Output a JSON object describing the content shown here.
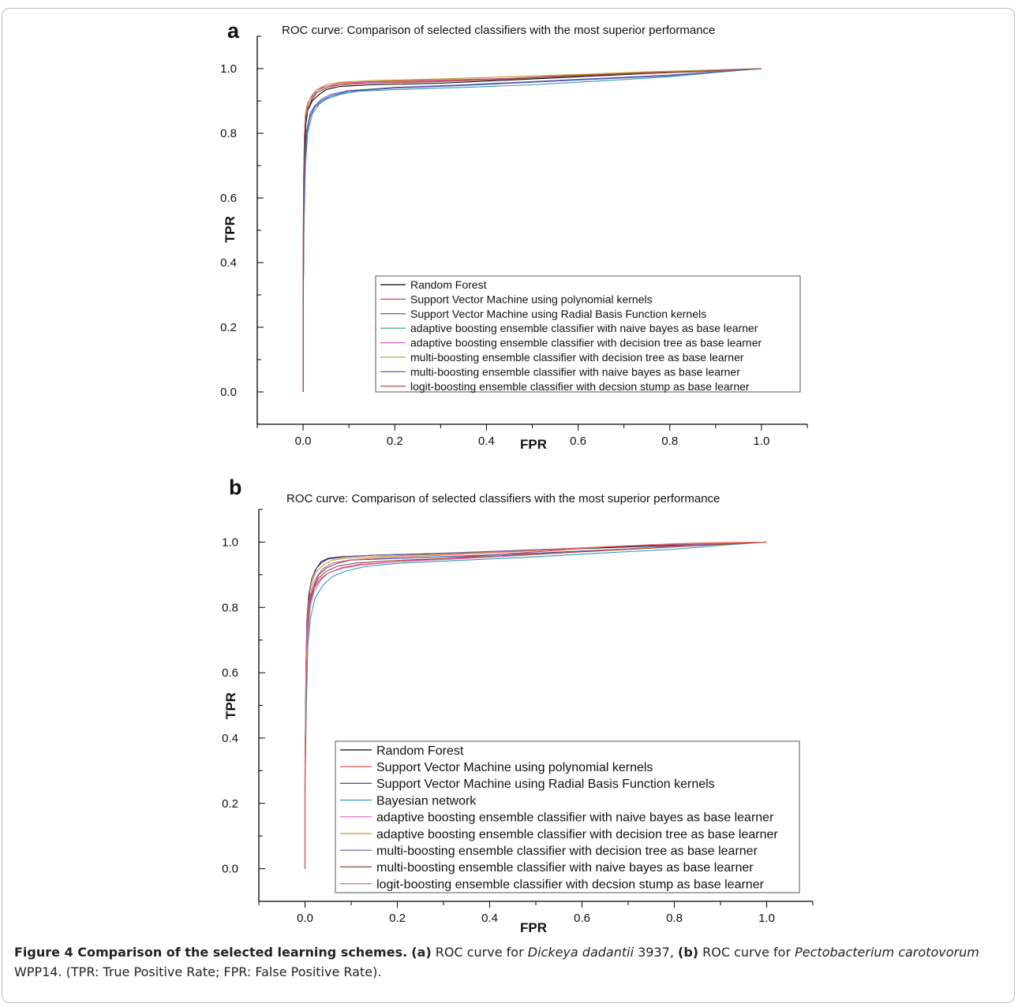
{
  "chart_data": [
    {
      "panel_label": "a",
      "type": "line",
      "title": "ROC curve: Comparison of selected classifiers with the most superior performance",
      "xlabel": "FPR",
      "ylabel": "TPR",
      "xlim": [
        -0.1,
        1.1
      ],
      "ylim": [
        -0.1,
        1.1
      ],
      "xticks": [
        "0.0",
        "0.2",
        "0.4",
        "0.6",
        "0.8",
        "1.0"
      ],
      "yticks": [
        "0.0",
        "0.2",
        "0.4",
        "0.6",
        "0.8",
        "1.0"
      ],
      "legend_position": "bottom-right",
      "grid": false,
      "series": [
        {
          "name": "Random Forest",
          "color": "#000000",
          "x": [
            0,
            0,
            0.002,
            0.004,
            0.006,
            0.01,
            0.02,
            0.035,
            0.05,
            0.08,
            0.15,
            0.3,
            0.45,
            0.6,
            0.75,
            0.9,
            1.0
          ],
          "y": [
            0,
            0.3,
            0.6,
            0.76,
            0.83,
            0.87,
            0.9,
            0.92,
            0.935,
            0.945,
            0.95,
            0.955,
            0.965,
            0.975,
            0.985,
            0.993,
            1.0
          ]
        },
        {
          "name": "Support Vector Machine using polynomial kernels",
          "color": "#e0403a",
          "x": [
            0,
            0,
            0.001,
            0.003,
            0.005,
            0.01,
            0.02,
            0.03,
            0.05,
            0.08,
            0.15,
            0.3,
            0.45,
            0.6,
            0.75,
            0.9,
            1.0
          ],
          "y": [
            0,
            0.35,
            0.66,
            0.8,
            0.86,
            0.895,
            0.915,
            0.935,
            0.945,
            0.955,
            0.96,
            0.965,
            0.97,
            0.98,
            0.988,
            0.995,
            1.0
          ]
        },
        {
          "name": "Support Vector Machine using Radial Basis Function kernels",
          "color": "#3a4fb0",
          "x": [
            0,
            0,
            0.002,
            0.005,
            0.008,
            0.015,
            0.025,
            0.04,
            0.06,
            0.1,
            0.2,
            0.35,
            0.5,
            0.65,
            0.8,
            0.9,
            1.0
          ],
          "y": [
            0,
            0.25,
            0.55,
            0.72,
            0.8,
            0.85,
            0.88,
            0.9,
            0.915,
            0.93,
            0.94,
            0.948,
            0.958,
            0.968,
            0.978,
            0.99,
            1.0
          ]
        },
        {
          "name": "adaptive boosting ensemble classifier with naive bayes as base learner",
          "color": "#2f9bb0",
          "x": [
            0,
            0,
            0.002,
            0.005,
            0.01,
            0.02,
            0.035,
            0.05,
            0.08,
            0.12,
            0.2,
            0.35,
            0.5,
            0.65,
            0.8,
            0.9,
            1.0
          ],
          "y": [
            0,
            0.22,
            0.52,
            0.7,
            0.8,
            0.86,
            0.89,
            0.905,
            0.92,
            0.93,
            0.935,
            0.942,
            0.95,
            0.962,
            0.975,
            0.988,
            1.0
          ]
        },
        {
          "name": "adaptive boosting ensemble classifier with decision tree as base learner",
          "color": "#d65fc6",
          "x": [
            0,
            0,
            0.001,
            0.003,
            0.006,
            0.012,
            0.02,
            0.03,
            0.05,
            0.09,
            0.15,
            0.3,
            0.45,
            0.6,
            0.75,
            0.9,
            1.0
          ],
          "y": [
            0,
            0.3,
            0.62,
            0.78,
            0.85,
            0.885,
            0.91,
            0.93,
            0.945,
            0.952,
            0.958,
            0.962,
            0.97,
            0.978,
            0.986,
            0.993,
            1.0
          ]
        },
        {
          "name": "multi-boosting ensemble classifier with decision tree as base learner",
          "color": "#b5a23b",
          "x": [
            0,
            0,
            0.001,
            0.003,
            0.005,
            0.01,
            0.018,
            0.03,
            0.05,
            0.08,
            0.15,
            0.3,
            0.45,
            0.6,
            0.75,
            0.9,
            1.0
          ],
          "y": [
            0,
            0.32,
            0.64,
            0.79,
            0.86,
            0.89,
            0.915,
            0.935,
            0.95,
            0.958,
            0.963,
            0.968,
            0.975,
            0.982,
            0.99,
            0.996,
            1.0
          ]
        },
        {
          "name": "multi-boosting ensemble classifier with naive bayes as base learner",
          "color": "#6a55a8",
          "x": [
            0,
            0,
            0.002,
            0.004,
            0.008,
            0.015,
            0.025,
            0.04,
            0.06,
            0.1,
            0.2,
            0.35,
            0.5,
            0.65,
            0.8,
            0.9,
            1.0
          ],
          "y": [
            0,
            0.26,
            0.56,
            0.73,
            0.81,
            0.86,
            0.885,
            0.905,
            0.92,
            0.932,
            0.942,
            0.95,
            0.96,
            0.97,
            0.98,
            0.99,
            1.0
          ]
        },
        {
          "name": "logit-boosting ensemble classifier with decsion stump as base learner",
          "color": "#9c4a2b",
          "x": [
            0,
            0,
            0.001,
            0.003,
            0.006,
            0.01,
            0.02,
            0.03,
            0.05,
            0.08,
            0.15,
            0.3,
            0.45,
            0.6,
            0.75,
            0.9,
            1.0
          ],
          "y": [
            0,
            0.33,
            0.63,
            0.78,
            0.85,
            0.88,
            0.905,
            0.925,
            0.94,
            0.95,
            0.955,
            0.96,
            0.968,
            0.978,
            0.986,
            0.994,
            1.0
          ]
        }
      ]
    },
    {
      "panel_label": "b",
      "type": "line",
      "title": "ROC curve: Comparison of selected classifiers with the most superior performance",
      "xlabel": "FPR",
      "ylabel": "TPR",
      "xlim": [
        -0.1,
        1.1
      ],
      "ylim": [
        -0.1,
        1.1
      ],
      "xticks": [
        "0.0",
        "0.2",
        "0.4",
        "0.6",
        "0.8",
        "1.0"
      ],
      "yticks": [
        "0.0",
        "0.2",
        "0.4",
        "0.6",
        "0.8",
        "1.0"
      ],
      "legend_position": "bottom-right",
      "grid": false,
      "series": [
        {
          "name": "Random Forest",
          "color": "#000000",
          "x": [
            0,
            0,
            0.002,
            0.005,
            0.01,
            0.015,
            0.025,
            0.035,
            0.05,
            0.08,
            0.15,
            0.3,
            0.45,
            0.6,
            0.75,
            0.9,
            1.0
          ],
          "y": [
            0,
            0.3,
            0.62,
            0.77,
            0.85,
            0.89,
            0.92,
            0.94,
            0.95,
            0.955,
            0.96,
            0.965,
            0.972,
            0.98,
            0.988,
            0.995,
            1.0
          ]
        },
        {
          "name": "Support Vector Machine using polynomial kernels",
          "color": "#e0403a",
          "x": [
            0,
            0,
            0.002,
            0.005,
            0.01,
            0.02,
            0.035,
            0.05,
            0.08,
            0.12,
            0.2,
            0.35,
            0.5,
            0.65,
            0.8,
            0.9,
            1.0
          ],
          "y": [
            0,
            0.28,
            0.58,
            0.73,
            0.81,
            0.86,
            0.89,
            0.905,
            0.92,
            0.93,
            0.94,
            0.955,
            0.97,
            0.985,
            0.995,
            0.998,
            1.0
          ]
        },
        {
          "name": "Support Vector Machine using Radial Basis Function kernels",
          "color": "#3a4fb0",
          "x": [
            0,
            0,
            0.002,
            0.005,
            0.01,
            0.02,
            0.03,
            0.045,
            0.07,
            0.1,
            0.2,
            0.35,
            0.5,
            0.65,
            0.8,
            0.9,
            1.0
          ],
          "y": [
            0,
            0.27,
            0.57,
            0.74,
            0.82,
            0.87,
            0.9,
            0.92,
            0.935,
            0.945,
            0.95,
            0.958,
            0.966,
            0.976,
            0.986,
            0.994,
            1.0
          ]
        },
        {
          "name": "Bayesian network",
          "color": "#2f9bb0",
          "x": [
            0,
            0,
            0.003,
            0.006,
            0.012,
            0.022,
            0.04,
            0.06,
            0.09,
            0.13,
            0.2,
            0.35,
            0.5,
            0.65,
            0.8,
            0.9,
            1.0
          ],
          "y": [
            0,
            0.22,
            0.5,
            0.68,
            0.77,
            0.83,
            0.87,
            0.895,
            0.912,
            0.925,
            0.935,
            0.945,
            0.955,
            0.967,
            0.978,
            0.99,
            1.0
          ]
        },
        {
          "name": "adaptive boosting ensemble classifier with naive bayes as base learner",
          "color": "#d65fc6",
          "x": [
            0,
            0,
            0.002,
            0.006,
            0.011,
            0.02,
            0.035,
            0.05,
            0.08,
            0.12,
            0.2,
            0.35,
            0.5,
            0.65,
            0.8,
            0.9,
            1.0
          ],
          "y": [
            0,
            0.25,
            0.54,
            0.71,
            0.8,
            0.85,
            0.885,
            0.905,
            0.922,
            0.932,
            0.94,
            0.95,
            0.962,
            0.975,
            0.988,
            0.996,
            1.0
          ]
        },
        {
          "name": "adaptive boosting ensemble classifier with decision tree as base learner",
          "color": "#b5a23b",
          "x": [
            0,
            0,
            0.002,
            0.004,
            0.008,
            0.015,
            0.025,
            0.04,
            0.06,
            0.1,
            0.2,
            0.35,
            0.5,
            0.65,
            0.8,
            0.9,
            1.0
          ],
          "y": [
            0,
            0.3,
            0.6,
            0.76,
            0.84,
            0.88,
            0.91,
            0.93,
            0.945,
            0.952,
            0.958,
            0.966,
            0.976,
            0.986,
            0.993,
            0.997,
            1.0
          ]
        },
        {
          "name": "multi-boosting ensemble classifier with decision tree as base learner",
          "color": "#6a55a8",
          "x": [
            0,
            0,
            0.002,
            0.004,
            0.008,
            0.014,
            0.022,
            0.035,
            0.05,
            0.09,
            0.15,
            0.3,
            0.45,
            0.6,
            0.75,
            0.9,
            1.0
          ],
          "y": [
            0,
            0.29,
            0.6,
            0.76,
            0.84,
            0.885,
            0.915,
            0.935,
            0.948,
            0.955,
            0.96,
            0.966,
            0.974,
            0.982,
            0.99,
            0.996,
            1.0
          ]
        },
        {
          "name": "multi-boosting ensemble classifier with naive bayes as base learner",
          "color": "#9c4a2b",
          "x": [
            0,
            0,
            0.002,
            0.005,
            0.01,
            0.018,
            0.03,
            0.045,
            0.07,
            0.11,
            0.2,
            0.35,
            0.5,
            0.65,
            0.8,
            0.9,
            1.0
          ],
          "y": [
            0,
            0.26,
            0.56,
            0.72,
            0.81,
            0.86,
            0.89,
            0.91,
            0.926,
            0.936,
            0.944,
            0.953,
            0.963,
            0.974,
            0.985,
            0.993,
            1.0
          ]
        },
        {
          "name": "logit-boosting ensemble classifier with decsion stump as base learner",
          "color": "#f06b5f",
          "x": [
            0,
            0,
            0.002,
            0.005,
            0.009,
            0.016,
            0.028,
            0.04,
            0.06,
            0.1,
            0.18,
            0.3,
            0.45,
            0.6,
            0.75,
            0.9,
            1.0
          ],
          "y": [
            0,
            0.27,
            0.58,
            0.74,
            0.82,
            0.87,
            0.9,
            0.92,
            0.936,
            0.946,
            0.953,
            0.96,
            0.97,
            0.982,
            0.992,
            0.997,
            1.0
          ]
        }
      ]
    }
  ],
  "caption": {
    "figure_label": "Figure 4 Comparison of the selected learning schemes.",
    "part_a_label": "(a)",
    "part_a_text_1": " ROC curve for ",
    "part_a_species": "Dickeya dadantii",
    "part_a_text_2": " 3937, ",
    "part_b_label": "(b)",
    "part_b_text_1": " ROC curve for ",
    "part_b_species": "Pectobacterium carotovorum",
    "part_b_text_2": " WPP14. (TPR: True Positive Rate; FPR: False Positive Rate)."
  }
}
